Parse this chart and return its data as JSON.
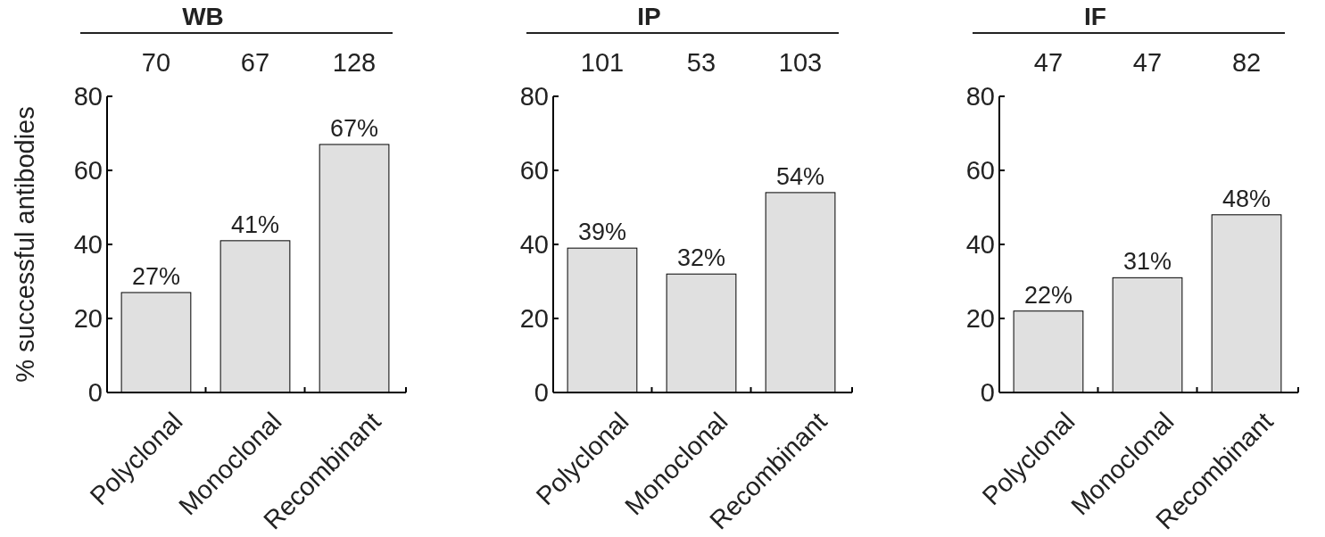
{
  "chart_data": [
    {
      "type": "bar",
      "title": "WB",
      "ylabel": "% successful antibodies",
      "categories": [
        "Polyclonal",
        "Monoclonal",
        "Recombinant"
      ],
      "values": [
        27,
        41,
        67
      ],
      "value_labels": [
        "27%",
        "41%",
        "67%"
      ],
      "color": "#e0e0e0",
      "ylim": [
        0,
        80
      ],
      "yticks": [
        0,
        20,
        40,
        60,
        80
      ],
      "annotations": [
        "70",
        "67",
        "128"
      ]
    },
    {
      "type": "bar",
      "title": "IP",
      "categories": [
        "Polyclonal",
        "Monoclonal",
        "Recombinant"
      ],
      "values": [
        39,
        32,
        54
      ],
      "value_labels": [
        "39%",
        "32%",
        "54%"
      ],
      "color": "#e0e0e0",
      "ylim": [
        0,
        80
      ],
      "yticks": [
        0,
        20,
        40,
        60,
        80
      ],
      "annotations": [
        "101",
        "53",
        "103"
      ]
    },
    {
      "type": "bar",
      "title": "IF",
      "categories": [
        "Polyclonal",
        "Monoclonal",
        "Recombinant"
      ],
      "values": [
        22,
        31,
        48
      ],
      "value_labels": [
        "22%",
        "31%",
        "48%"
      ],
      "color": "#e0e0e0",
      "ylim": [
        0,
        80
      ],
      "yticks": [
        0,
        20,
        40,
        60,
        80
      ],
      "annotations": [
        "47",
        "47",
        "82"
      ]
    }
  ]
}
